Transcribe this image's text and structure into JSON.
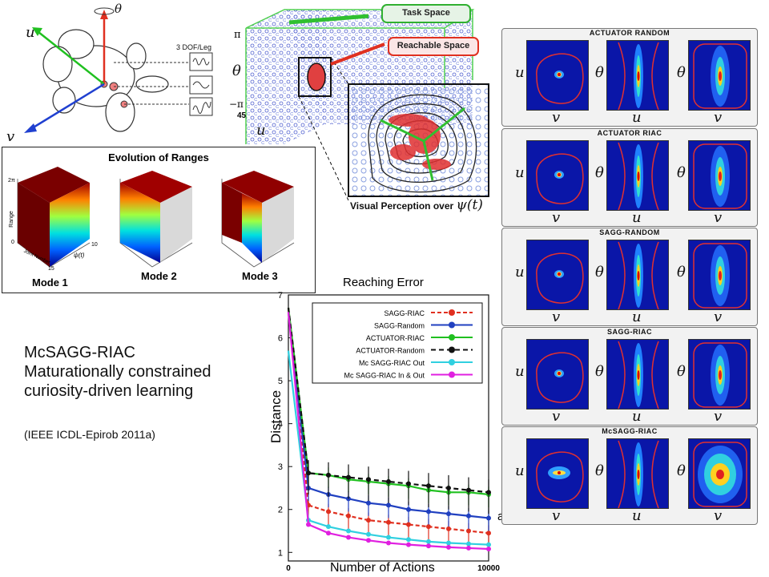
{
  "robot": {
    "label_theta": "θ",
    "label_u": "u",
    "label_v": "v",
    "dof": "3 DOF/Leg"
  },
  "task": {
    "task_space": "Task Space",
    "reachable_space": "Reachable Space",
    "axis_pi": "π",
    "axis_neg_pi": "−π",
    "axis_theta": "θ",
    "axis_u": "u",
    "tick_45": "45",
    "visual": "Visual Perception over",
    "psi": "ψ(t)"
  },
  "ranges": {
    "title": "Evolution of Ranges",
    "modes": [
      "Mode 1",
      "Mode 2",
      "Mode 3"
    ],
    "zlabel": "Range",
    "xlabel": "Joint Number",
    "ylabel": "ψ(t)",
    "ztop": "2π",
    "zbot": "0",
    "xend": "15",
    "yend": "10"
  },
  "blurb": {
    "line1": "McSAGG-RIAC",
    "line2": "Maturationally constrained",
    "line3": "curiosity-driven learning",
    "cite": "(IEEE ICDL-Epirob 2011a)"
  },
  "chart_data": {
    "type": "line",
    "title": "Reaching Error",
    "xlabel": "Number of Actions",
    "ylabel": "Distance",
    "xlim": [
      0,
      10000
    ],
    "ylim": [
      0.8,
      7
    ],
    "xticks": [
      "0",
      "10000"
    ],
    "yticks": [
      "1",
      "2",
      "3",
      "4",
      "5",
      "6",
      "7"
    ],
    "legend_position": "top-right",
    "annotation": "a)",
    "x": [
      0,
      1000,
      2000,
      3000,
      4000,
      5000,
      6000,
      7000,
      8000,
      9000,
      10000
    ],
    "series": [
      {
        "name": "SAGG-RIAC",
        "color": "#e03020",
        "values": [
          6.7,
          2.1,
          1.95,
          1.85,
          1.75,
          1.7,
          1.65,
          1.6,
          1.55,
          1.5,
          1.45
        ]
      },
      {
        "name": "SAGG-Random",
        "color": "#2040c0",
        "values": [
          6.6,
          2.5,
          2.35,
          2.25,
          2.15,
          2.1,
          2.0,
          1.95,
          1.9,
          1.85,
          1.8
        ]
      },
      {
        "name": "ACTUATOR-RIAC",
        "color": "#20c020",
        "values": [
          6.7,
          2.85,
          2.8,
          2.7,
          2.65,
          2.6,
          2.55,
          2.45,
          2.4,
          2.4,
          2.35
        ]
      },
      {
        "name": "ACTUATOR-Random",
        "color": "#111111",
        "values": [
          6.7,
          2.85,
          2.8,
          2.75,
          2.7,
          2.65,
          2.6,
          2.55,
          2.5,
          2.45,
          2.4
        ]
      },
      {
        "name": "Mc SAGG-RIAC Out",
        "color": "#30d0e0",
        "values": [
          5.7,
          1.75,
          1.6,
          1.5,
          1.42,
          1.35,
          1.3,
          1.25,
          1.22,
          1.2,
          1.18
        ]
      },
      {
        "name": "Mc SAGG-RIAC In & Out",
        "color": "#e020e0",
        "values": [
          6.6,
          1.65,
          1.45,
          1.35,
          1.28,
          1.22,
          1.18,
          1.15,
          1.12,
          1.1,
          1.08
        ]
      }
    ]
  },
  "panels": [
    {
      "title": "ACTUATOR RANDOM",
      "labels": [
        "u",
        "θ",
        "θ"
      ],
      "xlabels": [
        "v",
        "u",
        "v"
      ]
    },
    {
      "title": "ACTUATOR RIAC",
      "labels": [
        "u",
        "θ",
        "θ"
      ],
      "xlabels": [
        "v",
        "u",
        "v"
      ]
    },
    {
      "title": "SAGG-RANDOM",
      "labels": [
        "u",
        "θ",
        "θ"
      ],
      "xlabels": [
        "v",
        "u",
        "v"
      ]
    },
    {
      "title": "SAGG-RIAC",
      "labels": [
        "u",
        "θ",
        "θ"
      ],
      "xlabels": [
        "v",
        "u",
        "v"
      ]
    },
    {
      "title": "McSAGG-RIAC",
      "labels": [
        "u",
        "θ",
        "θ"
      ],
      "xlabels": [
        "v",
        "u",
        "v"
      ]
    }
  ]
}
